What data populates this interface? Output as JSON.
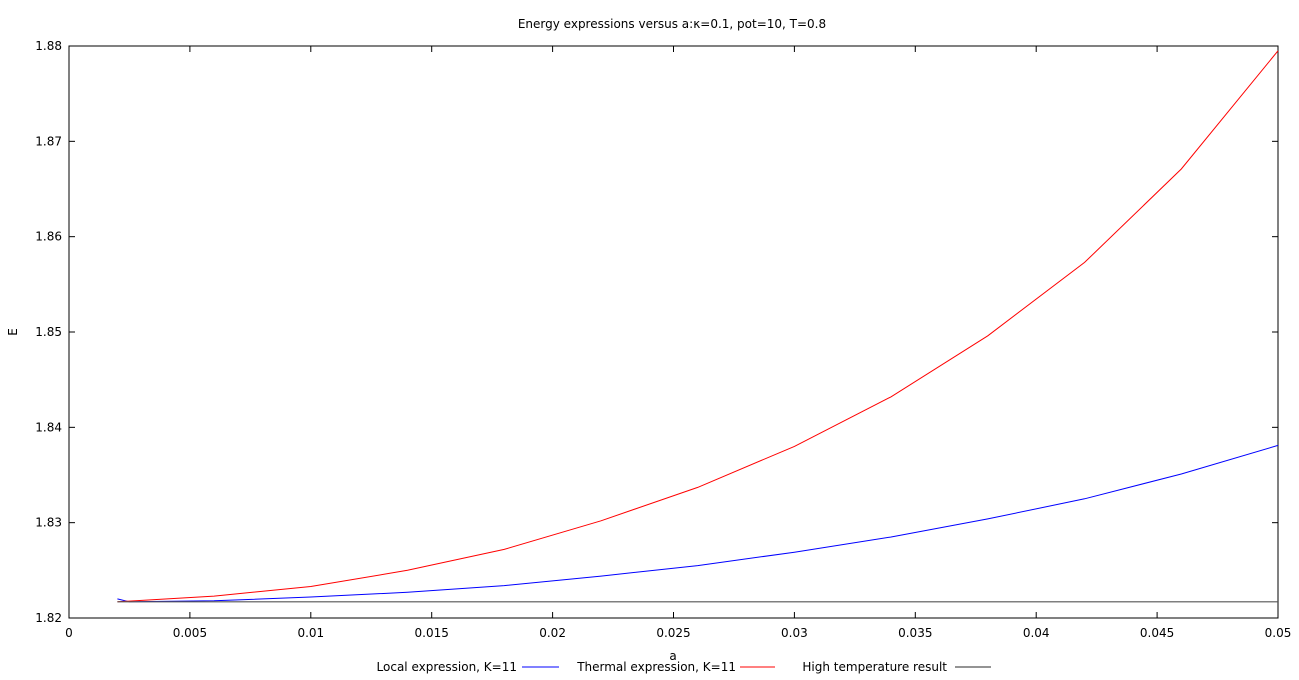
{
  "chart_data": {
    "type": "line",
    "title": "Energy expressions versus a:κ=0.1, pot=10, T=0.8",
    "xlabel": "a",
    "ylabel": "E",
    "xlim": [
      0,
      0.05
    ],
    "ylim": [
      1.82,
      1.88
    ],
    "xticks": [
      0,
      0.005,
      0.01,
      0.015,
      0.02,
      0.025,
      0.03,
      0.035,
      0.04,
      0.045,
      0.05
    ],
    "xtick_labels": [
      "0",
      "0.005",
      "0.01",
      "0.015",
      "0.02",
      "0.025",
      "0.03",
      "0.035",
      "0.04",
      "0.045",
      "0.05"
    ],
    "yticks": [
      1.82,
      1.83,
      1.84,
      1.85,
      1.86,
      1.87,
      1.88
    ],
    "ytick_labels": [
      "1.82",
      "1.83",
      "1.84",
      "1.85",
      "1.86",
      "1.87",
      "1.88"
    ],
    "grid": false,
    "legend_position": "bottom",
    "series": [
      {
        "name": "Local expression, K=11",
        "color": "#0000ff",
        "x": [
          0.002,
          0.0025,
          0.006,
          0.01,
          0.014,
          0.018,
          0.022,
          0.026,
          0.03,
          0.034,
          0.038,
          0.042,
          0.046,
          0.05
        ],
        "y": [
          1.822,
          1.8217,
          1.8218,
          1.8222,
          1.8227,
          1.8234,
          1.8244,
          1.8255,
          1.8269,
          1.8285,
          1.8304,
          1.8325,
          1.8351,
          1.8381
        ]
      },
      {
        "name": "Thermal expression, K=11",
        "color": "#ff0000",
        "x": [
          0.002,
          0.006,
          0.01,
          0.014,
          0.018,
          0.022,
          0.026,
          0.03,
          0.034,
          0.038,
          0.042,
          0.046,
          0.05
        ],
        "y": [
          1.8217,
          1.8223,
          1.8233,
          1.825,
          1.8272,
          1.8302,
          1.8337,
          1.838,
          1.8432,
          1.8496,
          1.8573,
          1.8671,
          1.8795
        ]
      },
      {
        "name": "High temperature result",
        "color": "#555555",
        "x": [
          0.002,
          0.05
        ],
        "y": [
          1.8217,
          1.8217
        ]
      }
    ]
  }
}
